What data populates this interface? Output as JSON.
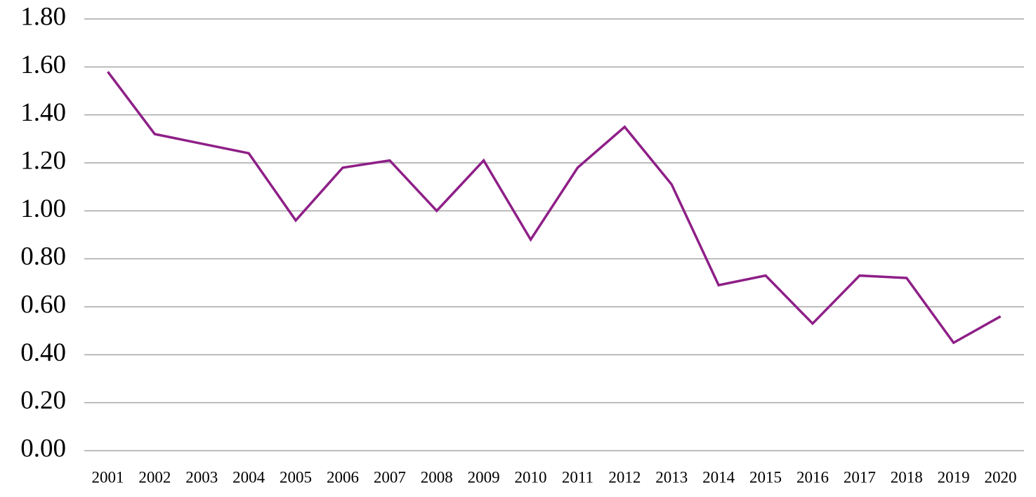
{
  "chart_data": {
    "type": "line",
    "categories": [
      "2001",
      "2002",
      "2003",
      "2004",
      "2005",
      "2006",
      "2007",
      "2008",
      "2009",
      "2010",
      "2011",
      "2012",
      "2013",
      "2014",
      "2015",
      "2016",
      "2017",
      "2018",
      "2019",
      "2020"
    ],
    "series": [
      {
        "color": "#8e1f87",
        "values": [
          1.58,
          1.32,
          1.28,
          1.24,
          0.96,
          1.18,
          1.21,
          1.0,
          1.21,
          0.88,
          1.18,
          1.35,
          1.11,
          0.69,
          0.73,
          0.53,
          0.73,
          0.72,
          0.45,
          0.56
        ]
      }
    ],
    "ylim": [
      0,
      1.8
    ],
    "yticks": [
      {
        "value": 0,
        "label": "0.00"
      },
      {
        "value": 0.2,
        "label": "0.20"
      },
      {
        "value": 0.4,
        "label": "0.40"
      },
      {
        "value": 0.6,
        "label": "0.60"
      },
      {
        "value": 0.8,
        "label": "0.80"
      },
      {
        "value": 1.0,
        "label": "1.00"
      },
      {
        "value": 1.2,
        "label": "1.20"
      },
      {
        "value": 1.4,
        "label": "1.40"
      },
      {
        "value": 1.6,
        "label": "1.60"
      },
      {
        "value": 1.8,
        "label": "1.80"
      }
    ],
    "grid": true,
    "grid_color": "#a6a6a6"
  }
}
